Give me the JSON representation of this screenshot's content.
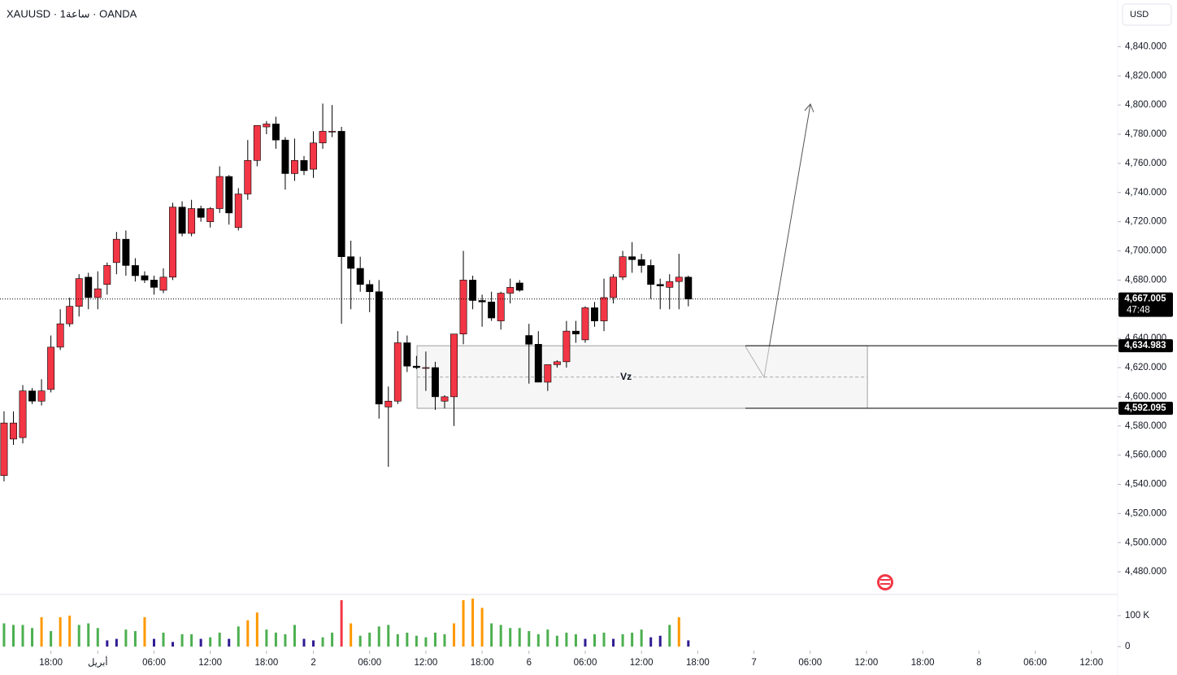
{
  "chart_data": {
    "type": "candlestick",
    "title": "XAUUSD · 1ساعة · OANDA",
    "currency": "USD",
    "up_color": "#f23645",
    "down_color": "#000000",
    "open": [
      4546,
      4571,
      4572,
      4604,
      4597,
      4605,
      4634,
      4650,
      4662,
      4682,
      4668,
      4677,
      4692,
      4708,
      4690,
      4683,
      4680,
      4673,
      4682,
      4730,
      4712,
      4729,
      4720,
      4729,
      4751,
      4716,
      4739,
      4762,
      4785,
      4787,
      4776,
      4753,
      4762,
      4756,
      4774,
      4782,
      4782,
      4696,
      4688,
      4677,
      4672,
      4593,
      4597,
      4637,
      4621,
      4620,
      4620,
      4597,
      4600,
      4643,
      4680,
      4666,
      4665,
      4652,
      4671,
      4678,
      4642,
      4636,
      4610,
      4622,
      4624,
      4645,
      4639,
      4661,
      4652,
      4668,
      4682,
      4696,
      4694,
      4690,
      4677,
      4675,
      4679,
      4682
    ],
    "high": [
      4590,
      4590,
      4608,
      4606,
      4612,
      4642,
      4660,
      4668,
      4684,
      4685,
      4686,
      4692,
      4713,
      4714,
      4695,
      4686,
      4683,
      4688,
      4733,
      4734,
      4735,
      4731,
      4730,
      4758,
      4752,
      4743,
      4776,
      4785,
      4789,
      4792,
      4778,
      4777,
      4765,
      4782,
      4801,
      4800,
      4785,
      4707,
      4696,
      4680,
      4680,
      4607,
      4645,
      4642,
      4628,
      4631,
      4624,
      4601,
      4643,
      4700,
      4683,
      4670,
      4672,
      4672,
      4681,
      4680,
      4650,
      4645,
      4622,
      4625,
      4652,
      4652,
      4662,
      4665,
      4681,
      4684,
      4700,
      4706,
      4698,
      4694,
      4681,
      4684,
      4698,
      4683
    ],
    "low": [
      4542,
      4567,
      4568,
      4595,
      4594,
      4603,
      4632,
      4648,
      4655,
      4660,
      4660,
      4670,
      4684,
      4683,
      4679,
      4678,
      4670,
      4671,
      4680,
      4710,
      4710,
      4720,
      4716,
      4726,
      4718,
      4714,
      4735,
      4758,
      4780,
      4770,
      4742,
      4748,
      4752,
      4750,
      4770,
      4778,
      4650,
      4660,
      4672,
      4658,
      4585,
      4552,
      4595,
      4617,
      4619,
      4604,
      4591,
      4592,
      4580,
      4636,
      4660,
      4648,
      4652,
      4646,
      4664,
      4672,
      4609,
      4610,
      4604,
      4620,
      4620,
      4637,
      4637,
      4648,
      4645,
      4664,
      4680,
      4685,
      4685,
      4667,
      4660,
      4660,
      4660,
      4662
    ],
    "close": [
      4582,
      4582,
      4604,
      4597,
      4604,
      4634,
      4650,
      4662,
      4681,
      4668,
      4674,
      4690,
      4708,
      4690,
      4683,
      4680,
      4675,
      4682,
      4730,
      4712,
      4729,
      4723,
      4729,
      4751,
      4726,
      4739,
      4762,
      4786,
      4787,
      4776,
      4753,
      4762,
      4755,
      4774,
      4782,
      4782,
      4696,
      4688,
      4677,
      4672,
      4595,
      4597,
      4637,
      4621,
      4620,
      4620,
      4600,
      4600,
      4643,
      4680,
      4666,
      4665,
      4654,
      4671,
      4675,
      4673,
      4636,
      4610,
      4622,
      4624,
      4645,
      4643,
      4661,
      4652,
      4668,
      4682,
      4696,
      4694,
      4690,
      4677,
      4676,
      4679,
      4682,
      4667
    ],
    "volume": [
      75,
      70,
      70,
      60,
      95,
      50,
      95,
      100,
      70,
      75,
      60,
      20,
      25,
      55,
      50,
      95,
      25,
      45,
      15,
      40,
      40,
      25,
      30,
      45,
      25,
      65,
      85,
      110,
      55,
      45,
      40,
      70,
      25,
      20,
      30,
      45,
      150,
      75,
      35,
      45,
      65,
      70,
      40,
      45,
      35,
      30,
      45,
      40,
      75,
      150,
      155,
      125,
      75,
      70,
      60,
      60,
      50,
      40,
      55,
      35,
      45,
      40,
      25,
      40,
      45,
      25,
      40,
      45,
      55,
      30,
      35,
      70,
      95,
      20
    ],
    "volume_colors": [
      "#4caf50",
      "#4caf50",
      "#4caf50",
      "#4caf50",
      "#ff9800",
      "#4caf50",
      "#ff9800",
      "#ff9800",
      "#4caf50",
      "#4caf50",
      "#4caf50",
      "#311b92",
      "#311b92",
      "#4caf50",
      "#4caf50",
      "#ff9800",
      "#311b92",
      "#4caf50",
      "#311b92",
      "#4caf50",
      "#4caf50",
      "#311b92",
      "#4caf50",
      "#4caf50",
      "#311b92",
      "#4caf50",
      "#ff9800",
      "#ff9800",
      "#4caf50",
      "#4caf50",
      "#4caf50",
      "#4caf50",
      "#311b92",
      "#311b92",
      "#4caf50",
      "#4caf50",
      "#f23645",
      "#ff9800",
      "#4caf50",
      "#4caf50",
      "#4caf50",
      "#4caf50",
      "#4caf50",
      "#4caf50",
      "#4caf50",
      "#4caf50",
      "#4caf50",
      "#4caf50",
      "#ff9800",
      "#ff9800",
      "#ff9800",
      "#ff9800",
      "#4caf50",
      "#4caf50",
      "#4caf50",
      "#4caf50",
      "#4caf50",
      "#4caf50",
      "#4caf50",
      "#4caf50",
      "#4caf50",
      "#4caf50",
      "#311b92",
      "#4caf50",
      "#4caf50",
      "#311b92",
      "#4caf50",
      "#4caf50",
      "#4caf50",
      "#311b92",
      "#311b92",
      "#4caf50",
      "#ff9800",
      "#311b92"
    ],
    "xlim": [
      -0.43,
      118.8
    ],
    "xticks": [
      {
        "value": 5,
        "label": "18:00"
      },
      {
        "value": 10,
        "label": "أبريل"
      },
      {
        "value": 16,
        "label": "06:00"
      },
      {
        "value": 22,
        "label": "12:00"
      },
      {
        "value": 28,
        "label": "18:00"
      },
      {
        "value": 33,
        "label": "2"
      },
      {
        "value": 39,
        "label": "06:00"
      },
      {
        "value": 45,
        "label": "12:00"
      },
      {
        "value": 51,
        "label": "18:00"
      },
      {
        "value": 56,
        "label": "6"
      },
      {
        "value": 62,
        "label": "06:00"
      },
      {
        "value": 68,
        "label": "12:00"
      },
      {
        "value": 74,
        "label": "18:00"
      },
      {
        "value": 80,
        "label": "7"
      },
      {
        "value": 86,
        "label": "06:00"
      },
      {
        "value": 92,
        "label": "12:00"
      },
      {
        "value": 98,
        "label": "18:00"
      },
      {
        "value": 104,
        "label": "8"
      },
      {
        "value": 110,
        "label": "06:00"
      },
      {
        "value": 116,
        "label": "12:00"
      }
    ],
    "ylim": [
      4465,
      4872
    ],
    "yticks": [
      {
        "value": 4480,
        "label": "4,480.000"
      },
      {
        "value": 4500,
        "label": "4,500.000"
      },
      {
        "value": 4520,
        "label": "4,520.000"
      },
      {
        "value": 4540,
        "label": "4,540.000"
      },
      {
        "value": 4560,
        "label": "4,560.000"
      },
      {
        "value": 4580,
        "label": "4,580.000"
      },
      {
        "value": 4600,
        "label": "4,600.000"
      },
      {
        "value": 4620,
        "label": "4,620.000"
      },
      {
        "value": 4640,
        "label": "4,640.000"
      },
      {
        "value": 4660,
        "label": "4,660.000"
      },
      {
        "value": 4680,
        "label": "4,680.000"
      },
      {
        "value": 4700,
        "label": "4,700.000"
      },
      {
        "value": 4720,
        "label": "4,720.000"
      },
      {
        "value": 4740,
        "label": "4,740.000"
      },
      {
        "value": 4760,
        "label": "4,760.000"
      },
      {
        "value": 4780,
        "label": "4,780.000"
      },
      {
        "value": 4800,
        "label": "4,800.000"
      },
      {
        "value": 4820,
        "label": "4,820.000"
      },
      {
        "value": 4840,
        "label": "4,840.000"
      }
    ],
    "volume_ylim": [
      -13,
      163
    ],
    "volume_ticks": [
      0,
      {
        "value": 100,
        "label": "100 K"
      }
    ],
    "current_price": {
      "value": 4667.005,
      "label": "4,667.005",
      "countdown": "47:48"
    },
    "zone": {
      "label": "Vz",
      "top": 4634.983,
      "top_label": "4,634.983",
      "bottom": 4592.095,
      "bottom_label": "4,592.095"
    }
  }
}
